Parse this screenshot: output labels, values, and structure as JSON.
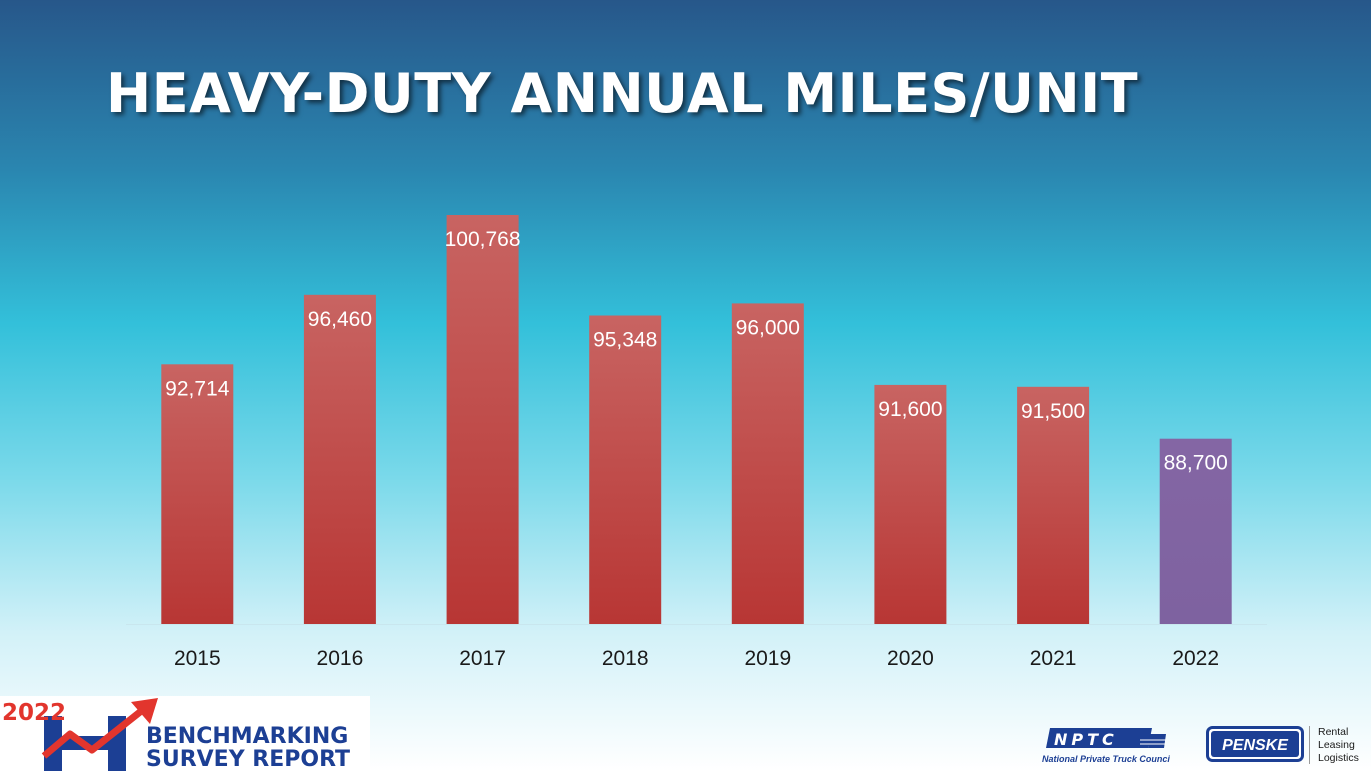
{
  "header": {
    "title": "HEAVY-DUTY ANNUAL MILES/UNIT"
  },
  "chart_data": {
    "type": "bar",
    "title": "HEAVY-DUTY ANNUAL MILES/UNIT",
    "categories": [
      "2015",
      "2016",
      "2017",
      "2018",
      "2019",
      "2020",
      "2021",
      "2022"
    ],
    "values": [
      92714,
      96460,
      100768,
      95348,
      96000,
      91600,
      91500,
      88700
    ],
    "value_labels": [
      "92,714",
      "96,460",
      "100,768",
      "95,348",
      "96,000",
      "91,600",
      "91,500",
      "88,700"
    ],
    "xlabel": "",
    "ylabel": "",
    "ylim": [
      78700,
      100768
    ],
    "grid": false,
    "legend": "none",
    "colors": {
      "bar": "#c0403e",
      "highlight": "#8064a2",
      "highlight_category": "2022"
    }
  },
  "footer": {
    "benchmark_logo": {
      "year": "2022",
      "line1": "BENCHMARKING",
      "line2": "SURVEY REPORT",
      "icon": "rising-arrow-chart-icon"
    },
    "nptc_logo": {
      "abbr": "NPTC",
      "full": "National Private Truck Council"
    },
    "penske_logo": {
      "name": "PENSKE",
      "tagline": [
        "Rental",
        "Leasing",
        "Logistics"
      ]
    }
  }
}
